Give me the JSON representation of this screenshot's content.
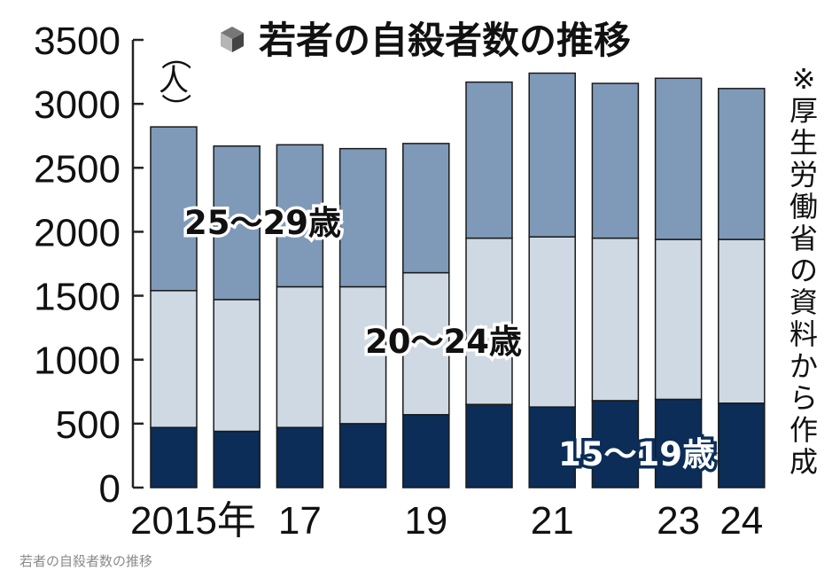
{
  "caption": "若者の自殺者数の推移",
  "chart_data": {
    "type": "bar",
    "stacked": true,
    "title": "若者の自殺者数の推移",
    "title_icon": "cube-icon",
    "y_unit": "（人）",
    "note": "※厚生労働省の資料から作成",
    "ylim": [
      0,
      3500
    ],
    "y_ticks": [
      "0",
      "500",
      "1000",
      "1500",
      "2000",
      "2500",
      "3000",
      "3500"
    ],
    "categories": [
      "2015",
      "2016",
      "2017",
      "2018",
      "2019",
      "2020",
      "2021",
      "2022",
      "2023",
      "2024"
    ],
    "x_tick_labels": [
      "2015年",
      "",
      "17",
      "",
      "19",
      "",
      "21",
      "",
      "23",
      "24"
    ],
    "series": [
      {
        "name": "15～19歳",
        "color": "#0b2d57",
        "values": [
          470,
          440,
          470,
          500,
          570,
          650,
          630,
          680,
          690,
          660
        ]
      },
      {
        "name": "20～24歳",
        "color": "#cfd9e4",
        "values": [
          1070,
          1030,
          1100,
          1070,
          1110,
          1300,
          1330,
          1270,
          1250,
          1280
        ]
      },
      {
        "name": "25～29歳",
        "color": "#7f9ab8",
        "values": [
          1280,
          1200,
          1110,
          1080,
          1010,
          1220,
          1280,
          1210,
          1260,
          1180
        ]
      }
    ],
    "grid": false
  }
}
